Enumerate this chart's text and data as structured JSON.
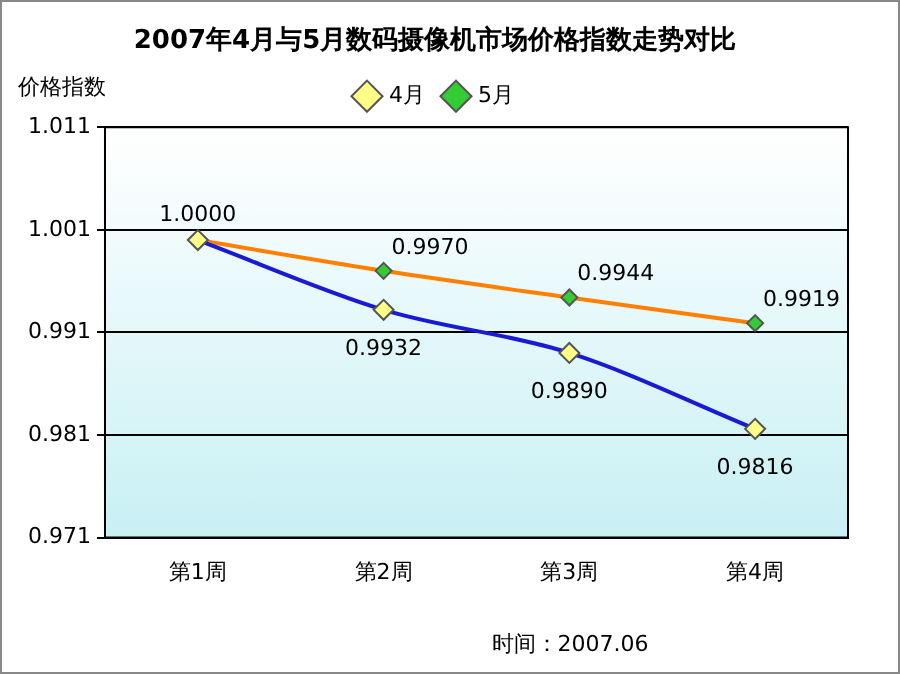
{
  "chart_data": {
    "type": "line",
    "title": "2007年4月与5月数码摄像机市场价格指数走势对比",
    "ylabel": "价格指数",
    "categories": [
      "第1周",
      "第2周",
      "第3周",
      "第4周"
    ],
    "series": [
      {
        "name": "4月",
        "color": "#1a1ad6",
        "values": [
          1.0,
          0.9932,
          0.989,
          0.9816
        ],
        "value_labels": [
          null,
          "0.9932",
          "0.9890",
          "0.9816"
        ]
      },
      {
        "name": "5月",
        "color": "#ff7f00",
        "values": [
          1.0,
          0.997,
          0.9944,
          0.9919
        ],
        "value_labels": [
          "1.0000",
          "0.9970",
          "0.9944",
          "0.9919"
        ]
      }
    ],
    "ylim": [
      0.971,
      1.011
    ],
    "yticks": [
      0.971,
      0.981,
      0.991,
      1.001,
      1.011
    ],
    "grid": "y",
    "legend": "top",
    "marker": "diamond",
    "line_style": "solid",
    "annotations": [
      "时间：2007.06"
    ]
  }
}
